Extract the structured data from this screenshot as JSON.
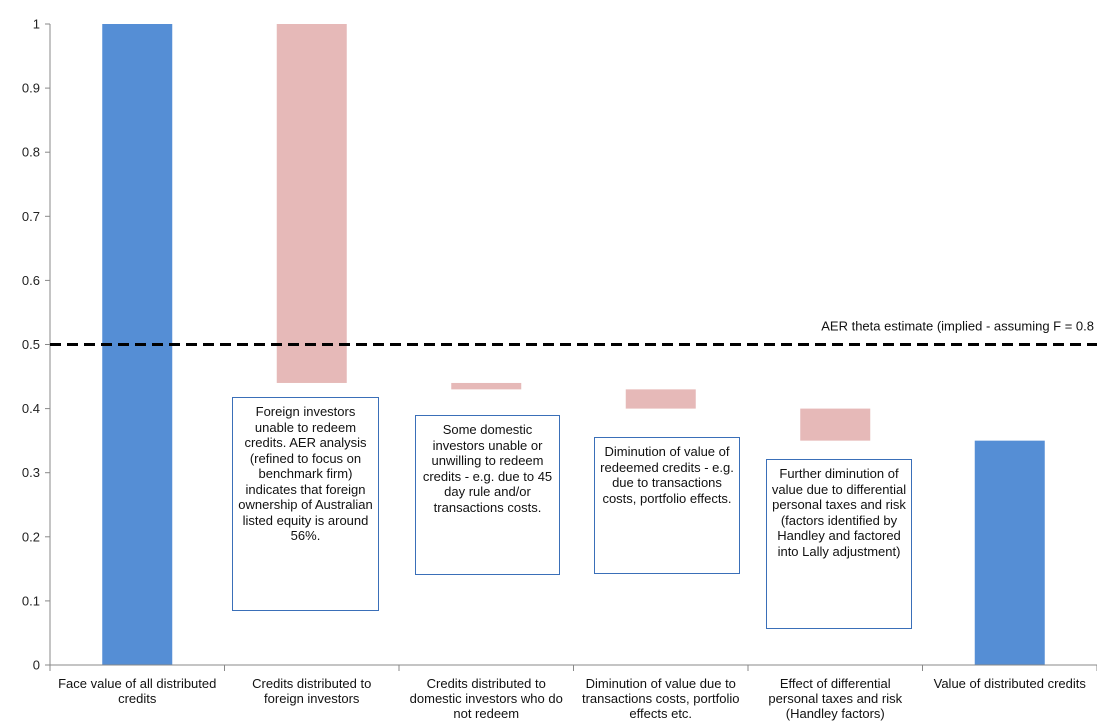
{
  "chart_data": {
    "type": "bar",
    "subtype": "waterfall",
    "categories": [
      "Face value of all distributed credits",
      "Credits distributed to foreign investors",
      "Credits distributed to domestic investors who do not redeem",
      "Diminution of value due to transactions costs, portfolio effects etc.",
      "Effect of differential personal taxes and risk (Handley factors)",
      "Value of distributed credits"
    ],
    "bars": [
      {
        "from": 0,
        "to": 1.0,
        "color": "#558ed5",
        "kind": "total"
      },
      {
        "from": 1.0,
        "to": 0.44,
        "color": "#e6b9b8",
        "kind": "decrease"
      },
      {
        "from": 0.44,
        "to": 0.43,
        "color": "#e6b9b8",
        "kind": "decrease"
      },
      {
        "from": 0.43,
        "to": 0.4,
        "color": "#e6b9b8",
        "kind": "decrease"
      },
      {
        "from": 0.4,
        "to": 0.35,
        "color": "#e6b9b8",
        "kind": "decrease"
      },
      {
        "from": 0,
        "to": 0.35,
        "color": "#558ed5",
        "kind": "total"
      }
    ],
    "ylim": [
      0,
      1
    ],
    "yticks": [
      "0",
      "0.1",
      "0.2",
      "0.3",
      "0.4",
      "0.5",
      "0.6",
      "0.7",
      "0.8",
      "0.9",
      "1"
    ],
    "grid": false,
    "reference_line": {
      "y": 0.5,
      "style": "dashed",
      "color": "#000000",
      "label": "AER theta estimate (implied - assuming F = 0.8"
    },
    "annotations": [
      {
        "category_index": 1,
        "text": "Foreign investors unable to redeem credits. AER analysis (refined to focus on benchmark firm) indicates that foreign ownership of Australian listed equity is around 56%."
      },
      {
        "category_index": 2,
        "text": "Some domestic investors unable or unwilling to redeem credits - e.g. due to 45 day rule and/or transactions costs."
      },
      {
        "category_index": 3,
        "text": "Diminution of value of redeemed credits - e.g. due to transactions costs, portfolio effects."
      },
      {
        "category_index": 4,
        "text": "Further diminution of value due to differential personal taxes and risk (factors identified by Handley and factored into Lally adjustment)"
      }
    ]
  }
}
